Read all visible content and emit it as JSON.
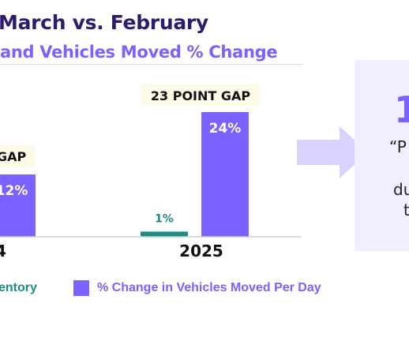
{
  "header": {
    "title": "March vs. February",
    "subtitle": "and Vehicles Moved % Change"
  },
  "chart_data": {
    "type": "bar",
    "categories": [
      "4",
      "2025"
    ],
    "series": [
      {
        "name": "entory",
        "color": "#1f8c84",
        "values": [
          null,
          1
        ],
        "labels": [
          "",
          "1%"
        ]
      },
      {
        "name": "% Change in Vehicles Moved Per Day",
        "color": "#7b61ff",
        "values": [
          12,
          24
        ],
        "labels": [
          "12%",
          "24%"
        ]
      }
    ],
    "annotations": [
      "GAP",
      "23 POINT GAP"
    ],
    "ylim": [
      0,
      26
    ],
    "legend_position": "bottom",
    "grid": false
  },
  "callout": {
    "big_text": "1",
    "lines": [
      "“P",
      "du",
      "t"
    ],
    "arrow_color": "#d8d2ff"
  }
}
